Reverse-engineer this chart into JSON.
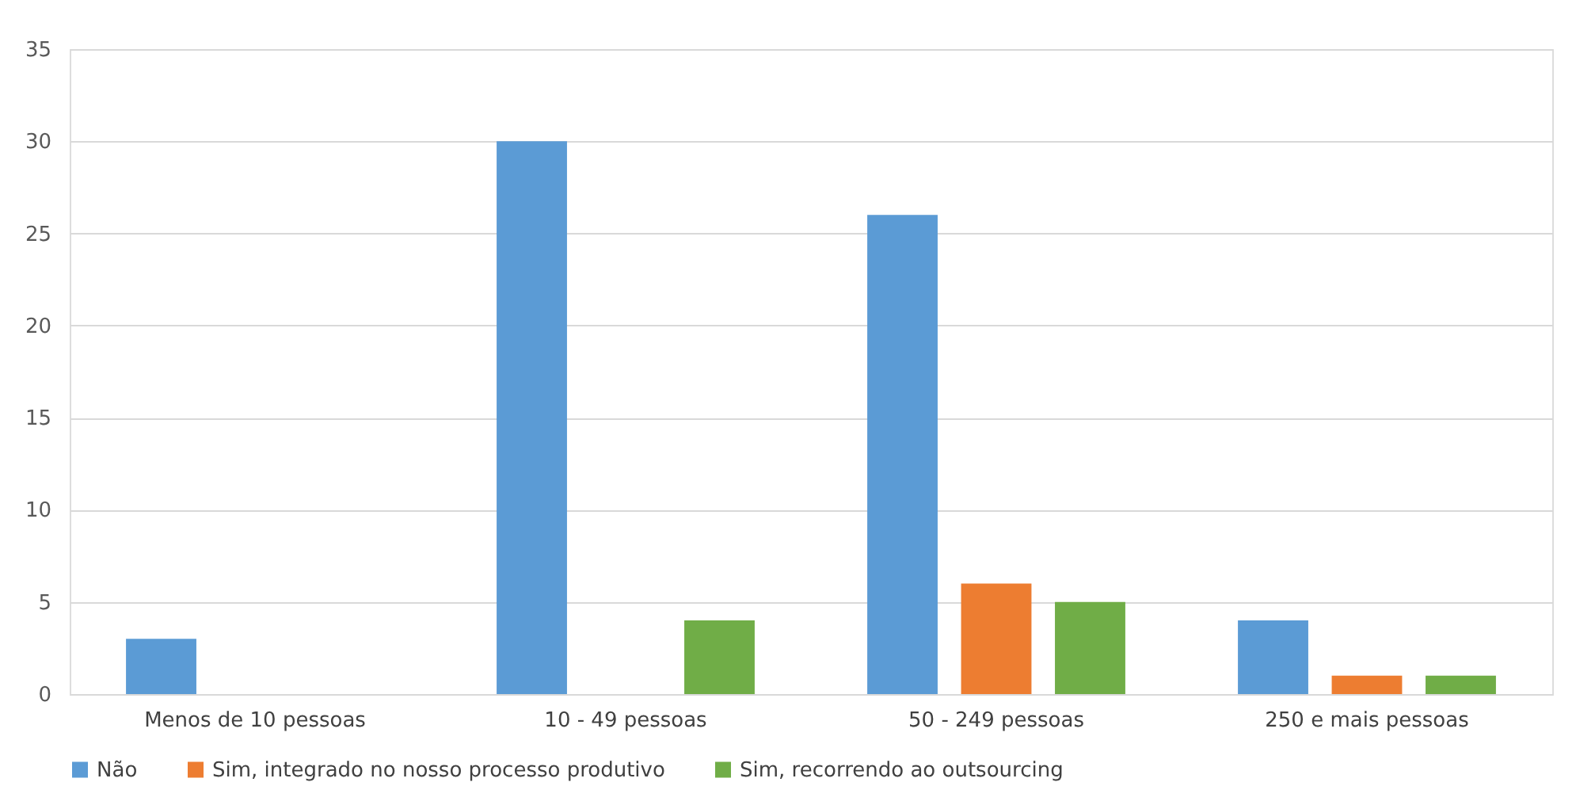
{
  "chart_data": {
    "type": "bar",
    "categories": [
      "Menos de 10 pessoas",
      "10 - 49 pessoas",
      "50 - 249 pessoas",
      "250 e mais pessoas"
    ],
    "series": [
      {
        "name": "Não",
        "color": "#5b9bd5",
        "values": [
          3,
          30,
          26,
          4
        ]
      },
      {
        "name": "Sim, integrado no nosso processo produtivo",
        "color": "#ed7d31",
        "values": [
          0,
          0,
          6,
          1
        ]
      },
      {
        "name": "Sim, recorrendo ao outsourcing",
        "color": "#70ad47",
        "values": [
          0,
          4,
          5,
          1
        ]
      }
    ],
    "ylim": [
      0,
      35
    ],
    "yticks": [
      0,
      5,
      10,
      15,
      20,
      25,
      30,
      35
    ],
    "grid": "y",
    "legend": "bottom"
  }
}
